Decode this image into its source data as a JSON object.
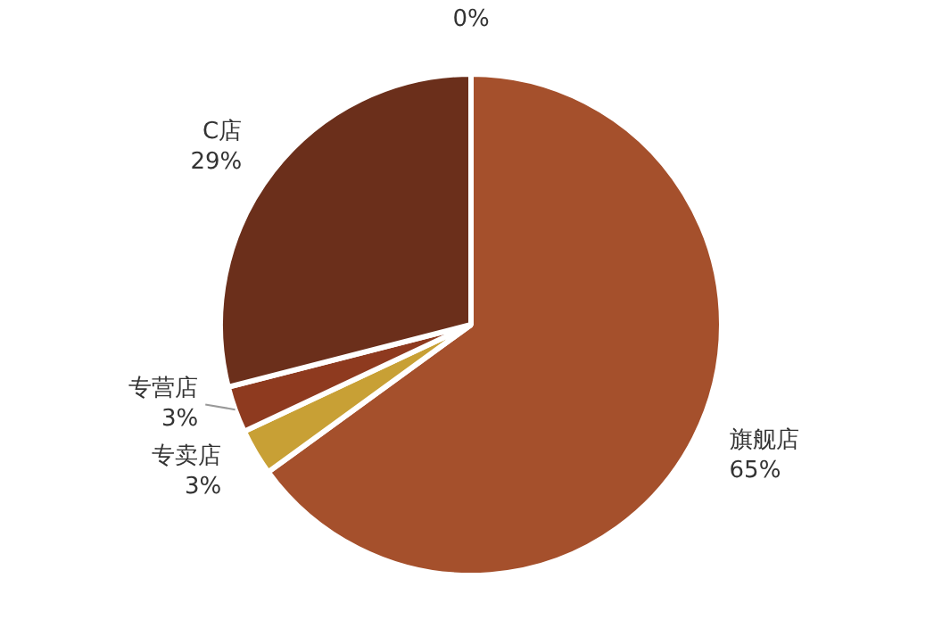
{
  "chart_data": {
    "type": "pie",
    "categories": [
      null,
      "旗舰店",
      "专卖店",
      "专营店",
      "C店"
    ],
    "values": [
      0,
      65,
      3,
      3,
      29
    ],
    "value_labels": [
      "0%",
      "65%",
      "3%",
      "3%",
      "29%"
    ],
    "colors": [
      "#d9a46a",
      "#a5502c",
      "#c8a035",
      "#8e3a1f",
      "#6b2f1b"
    ],
    "legend": false
  }
}
